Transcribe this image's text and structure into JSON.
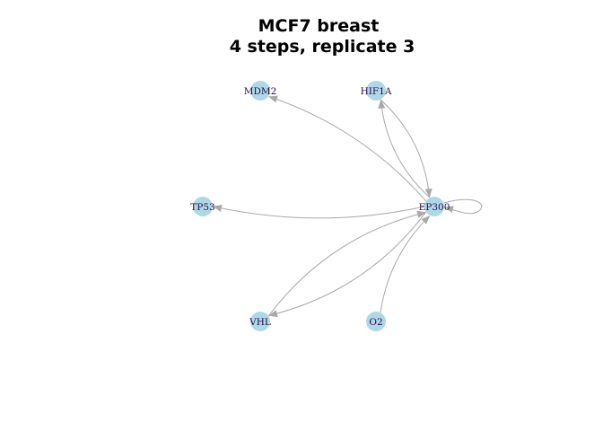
{
  "title": {
    "line1": "MCF7 breast",
    "line2": "4 steps, replicate 3"
  },
  "colors": {
    "node_fill": "#add8e6",
    "edge": "#a9a9a9",
    "label": "#2b0a4a",
    "background": "#ffffff"
  },
  "nodes": [
    {
      "id": "MDM2",
      "label": "MDM2"
    },
    {
      "id": "HIF1A",
      "label": "HIF1A"
    },
    {
      "id": "TP53",
      "label": "TP53"
    },
    {
      "id": "EP300",
      "label": "EP300"
    },
    {
      "id": "VHL",
      "label": "VHL"
    },
    {
      "id": "O2",
      "label": "O2"
    }
  ],
  "edges": [
    {
      "source": "EP300",
      "target": "MDM2"
    },
    {
      "source": "EP300",
      "target": "HIF1A"
    },
    {
      "source": "HIF1A",
      "target": "EP300"
    },
    {
      "source": "EP300",
      "target": "TP53"
    },
    {
      "source": "EP300",
      "target": "VHL"
    },
    {
      "source": "VHL",
      "target": "EP300"
    },
    {
      "source": "O2",
      "target": "EP300"
    },
    {
      "source": "EP300",
      "target": "EP300"
    }
  ]
}
